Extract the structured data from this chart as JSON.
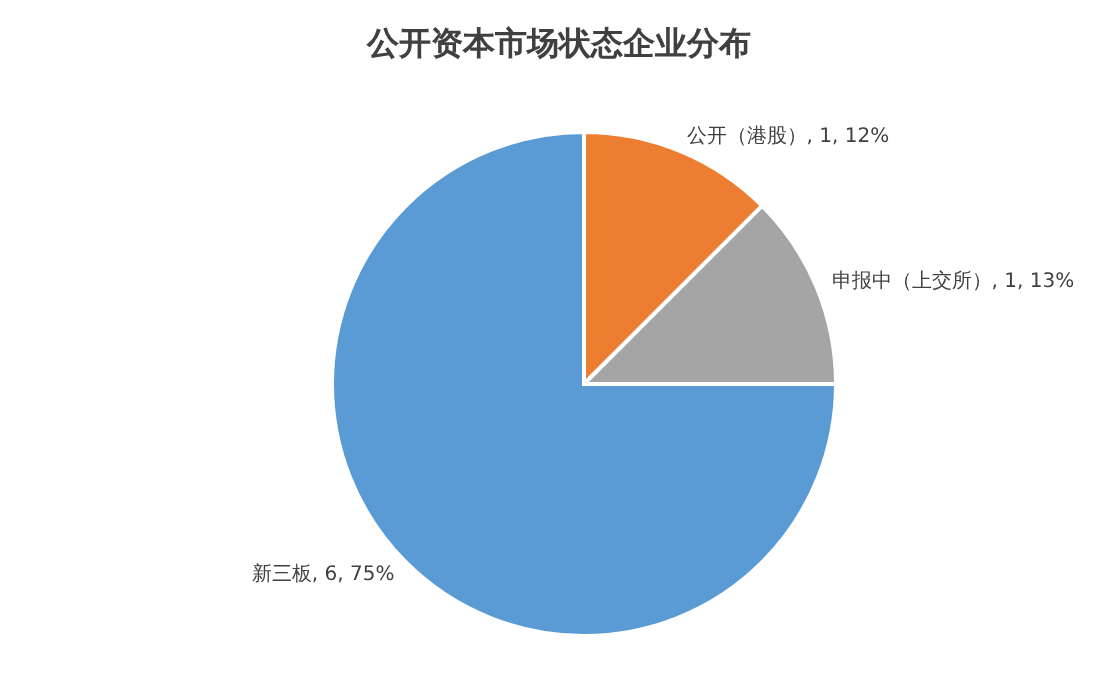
{
  "chart_data": {
    "type": "pie",
    "title": "公开资本市场状态企业分布",
    "categories": [
      "公开（港股）",
      "申报中（上交所）",
      "新三板"
    ],
    "values": [
      1,
      1,
      6
    ],
    "colors": [
      "#ed7d31",
      "#a5a5a5",
      "#5b9bd5"
    ],
    "value_labels": [
      "1, 12%",
      "1, 13%",
      "6, 75%"
    ]
  }
}
